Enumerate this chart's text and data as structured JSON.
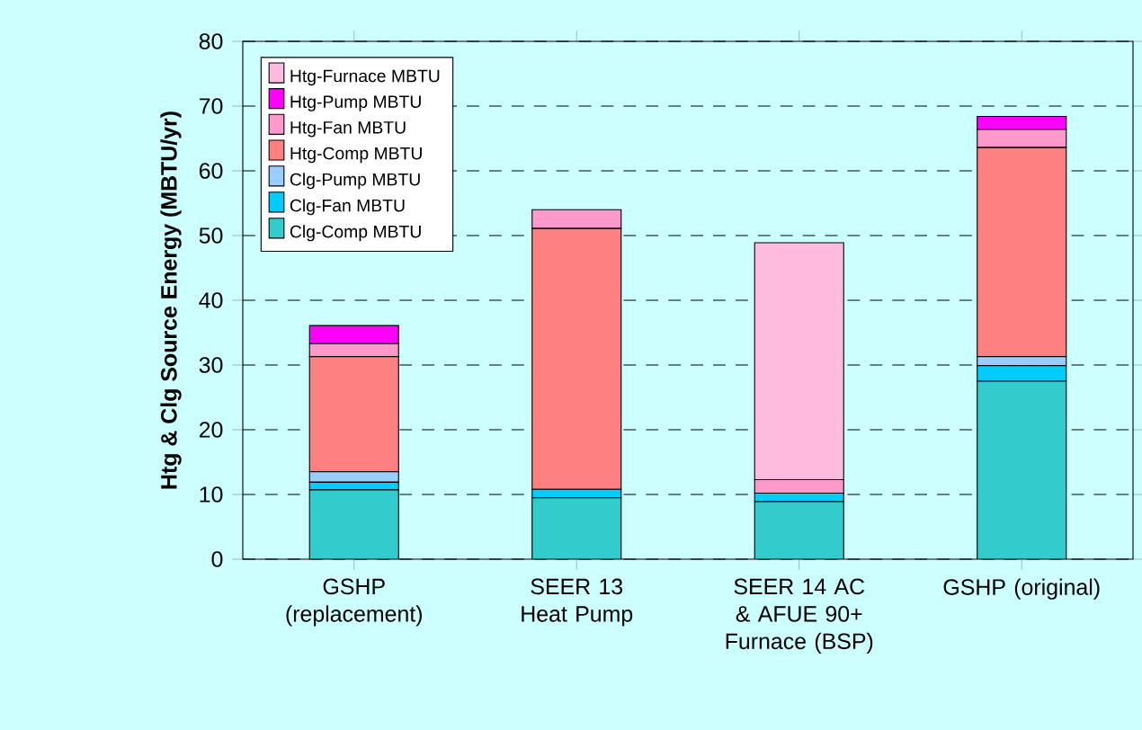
{
  "chart_data": {
    "type": "bar",
    "stacked": true,
    "ylabel": "Htg & Clg Source Energy (MBTU/yr)",
    "categories": [
      "GSHP (replacement)",
      "SEER 13 Heat Pump",
      "SEER 14 AC & AFUE 90+ Furnace (BSP)",
      "GSHP (original)"
    ],
    "series": [
      {
        "name": "Clg-Comp MBTU",
        "color": "#33cccc",
        "values": [
          10.7,
          9.5,
          8.9,
          27.5
        ]
      },
      {
        "name": "Clg-Fan MBTU",
        "color": "#00ccff",
        "values": [
          1.2,
          1.3,
          1.3,
          2.4
        ]
      },
      {
        "name": "Clg-Pump MBTU",
        "color": "#99ccff",
        "values": [
          1.6,
          0,
          0,
          1.4
        ]
      },
      {
        "name": "Htg-Comp MBTU",
        "color": "#ff8080",
        "values": [
          17.8,
          40.3,
          0,
          32.3
        ]
      },
      {
        "name": "Htg-Fan MBTU",
        "color": "#ff99cc",
        "values": [
          2.0,
          2.9,
          2.1,
          2.8
        ]
      },
      {
        "name": "Htg-Pump MBTU",
        "color": "#ff00ff",
        "values": [
          2.8,
          0,
          0,
          2.0
        ]
      },
      {
        "name": "Htg-Furnace MBTU",
        "color": "#ffbbdd",
        "values": [
          0,
          0,
          36.6,
          0
        ]
      }
    ],
    "ylim": [
      0,
      80
    ],
    "yticks": [
      0,
      10,
      20,
      30,
      40,
      50,
      60,
      70,
      80
    ],
    "grid": "y",
    "legend": "top left"
  }
}
